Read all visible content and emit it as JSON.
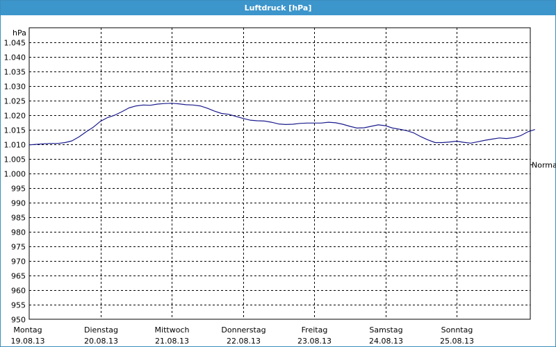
{
  "window": {
    "title": "Luftdruck [hPa]"
  },
  "chart_data": {
    "type": "line",
    "title": "Luftdruck [hPa]",
    "ylabel": "hPa",
    "xlabel": "",
    "ylim": [
      950,
      1050
    ],
    "yticks": [
      950,
      955,
      960,
      965,
      970,
      975,
      980,
      985,
      990,
      995,
      1000,
      1005,
      1010,
      1015,
      1020,
      1025,
      1030,
      1035,
      1040,
      1045
    ],
    "ytick_labels": [
      "950",
      "955",
      "960",
      "965",
      "970",
      "975",
      "980",
      "985",
      "990",
      "995",
      "1.000",
      "1.005",
      "1.010",
      "1.015",
      "1.020",
      "1.025",
      "1.030",
      "1.035",
      "1.040",
      "1.045"
    ],
    "xlim": [
      0,
      7.2
    ],
    "grid": true,
    "grid_style": "dashed",
    "categories": [
      {
        "day": "Montag",
        "date": "19.08.13"
      },
      {
        "day": "Dienstag",
        "date": "20.08.13"
      },
      {
        "day": "Mittwoch",
        "date": "21.08.13"
      },
      {
        "day": "Donnerstag",
        "date": "22.08.13"
      },
      {
        "day": "Freitag",
        "date": "23.08.13"
      },
      {
        "day": "Samstag",
        "date": "24.08.13"
      },
      {
        "day": "Sonntag",
        "date": "25.08.13"
      }
    ],
    "reference_line": {
      "label": "Normal",
      "value": 1003
    },
    "series": [
      {
        "color": "#1a1a8c",
        "x": [
          0,
          0.1,
          0.2,
          0.3,
          0.4,
          0.5,
          0.6,
          0.7,
          0.8,
          0.9,
          1.0,
          1.1,
          1.2,
          1.3,
          1.4,
          1.5,
          1.6,
          1.7,
          1.8,
          1.9,
          2.0,
          2.1,
          2.2,
          2.3,
          2.4,
          2.5,
          2.6,
          2.7,
          2.8,
          2.9,
          3.0,
          3.1,
          3.2,
          3.3,
          3.4,
          3.5,
          3.6,
          3.7,
          3.8,
          3.9,
          4.0,
          4.1,
          4.2,
          4.3,
          4.4,
          4.5,
          4.6,
          4.7,
          4.8,
          4.9,
          5.0,
          5.1,
          5.2,
          5.3,
          5.4,
          5.5,
          5.6,
          5.7,
          5.8,
          5.9,
          6.0,
          6.1,
          6.2,
          6.3,
          6.4,
          6.5,
          6.6,
          6.7,
          6.8,
          6.9,
          7.0,
          7.1
        ],
        "values": [
          1009.8,
          1010.0,
          1010.2,
          1010.3,
          1010.3,
          1010.6,
          1011.2,
          1012.6,
          1014.3,
          1015.9,
          1017.9,
          1019.2,
          1020.0,
          1021.2,
          1022.5,
          1023.2,
          1023.5,
          1023.4,
          1023.8,
          1024.0,
          1024.1,
          1023.9,
          1023.6,
          1023.5,
          1023.2,
          1022.4,
          1021.4,
          1020.6,
          1020.3,
          1019.6,
          1018.9,
          1018.3,
          1018.1,
          1018.0,
          1017.6,
          1017.0,
          1016.8,
          1016.9,
          1017.2,
          1017.3,
          1017.3,
          1017.3,
          1017.6,
          1017.4,
          1016.9,
          1016.2,
          1015.6,
          1015.7,
          1016.2,
          1016.7,
          1016.4,
          1015.6,
          1015.2,
          1014.7,
          1013.9,
          1012.6,
          1011.5,
          1010.6,
          1010.6,
          1010.8,
          1011.1,
          1010.7,
          1010.4,
          1010.9,
          1011.4,
          1011.8,
          1012.2,
          1012.0,
          1012.3,
          1013.0,
          1014.3,
          1015.1
        ]
      }
    ]
  }
}
